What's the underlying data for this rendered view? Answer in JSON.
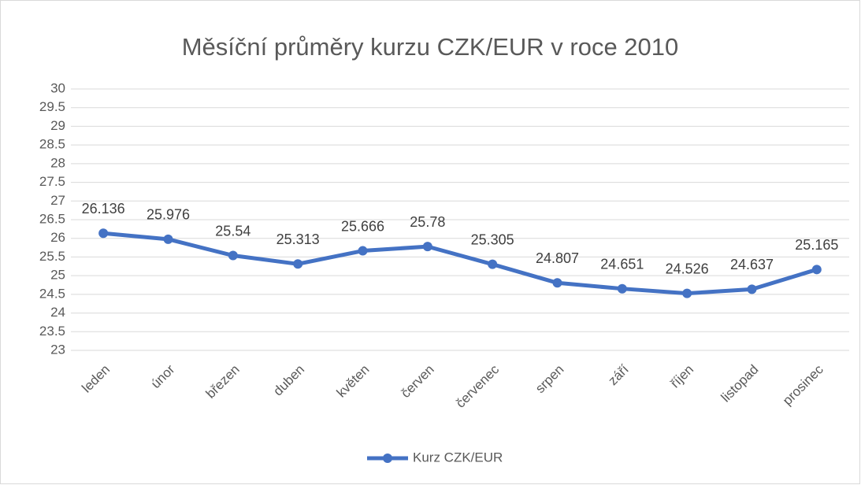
{
  "chart_data": {
    "type": "line",
    "title": "Měsíční průměry kurzu CZK/EUR v roce 2010",
    "categories": [
      "leden",
      "únor",
      "březen",
      "duben",
      "květen",
      "červen",
      "červenec",
      "srpen",
      "září",
      "říjen",
      "listopad",
      "prosinec"
    ],
    "series": [
      {
        "name": "Kurz CZK/EUR",
        "color": "#4472c4",
        "values": [
          26.136,
          25.976,
          25.54,
          25.313,
          25.666,
          25.78,
          25.305,
          24.807,
          24.651,
          24.526,
          24.637,
          25.165
        ]
      }
    ],
    "ylim": [
      23,
      30
    ],
    "yticks": [
      23,
      23.5,
      24,
      24.5,
      25,
      25.5,
      26,
      26.5,
      27,
      27.5,
      28,
      28.5,
      29,
      29.5,
      30
    ],
    "grid": true,
    "legend": "bottom",
    "data_labels": true
  }
}
